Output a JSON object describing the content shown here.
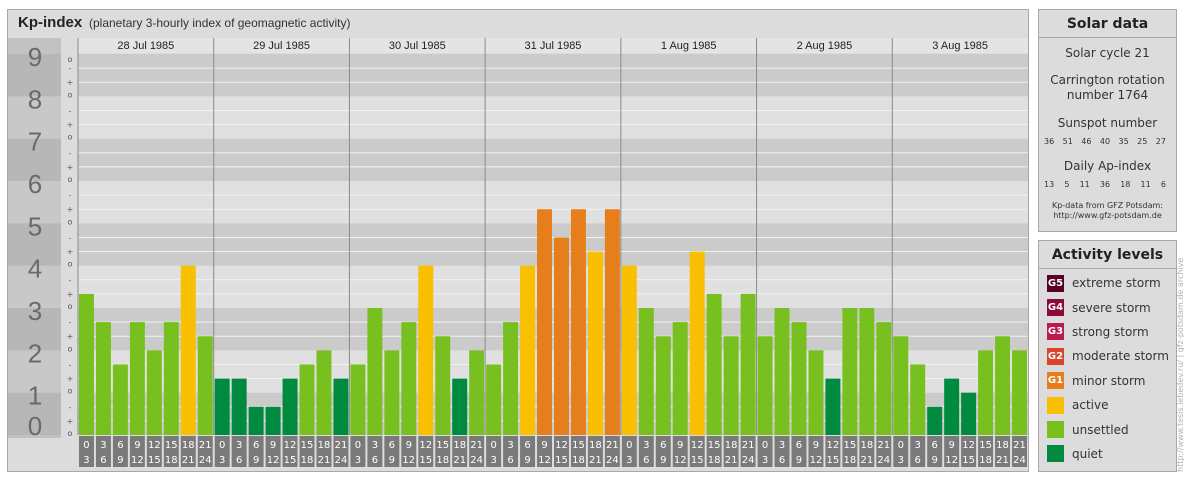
{
  "header": {
    "title": "Kp-index",
    "subtitle": "(planetary 3-hourly index of geomagnetic activity)"
  },
  "chart_data": {
    "type": "bar",
    "title": "Kp-index",
    "subtitle": "(planetary 3-hourly index of geomagnetic activity)",
    "ylim": [
      0,
      9
    ],
    "y_ticks": [
      "0",
      "1",
      "2",
      "3",
      "4",
      "5",
      "6",
      "7",
      "8",
      "9"
    ],
    "minor_ticks": [
      "o",
      "+",
      "-"
    ],
    "days": [
      "28 Jul 1985",
      "29 Jul 1985",
      "30 Jul 1985",
      "31 Jul 1985",
      "1 Aug 1985",
      "2 Aug 1985",
      "3 Aug 1985"
    ],
    "hour_labels": [
      [
        "0",
        "3"
      ],
      [
        "3",
        "6"
      ],
      [
        "6",
        "9"
      ],
      [
        "9",
        "12"
      ],
      [
        "12",
        "15"
      ],
      [
        "15",
        "18"
      ],
      [
        "18",
        "21"
      ],
      [
        "21",
        "24"
      ]
    ],
    "values": [
      [
        3.333,
        2.667,
        1.667,
        2.667,
        2.0,
        2.667,
        4.0,
        2.333
      ],
      [
        1.333,
        1.333,
        0.667,
        0.667,
        1.333,
        1.667,
        2.0,
        1.333
      ],
      [
        1.667,
        3.0,
        2.0,
        2.667,
        4.0,
        2.333,
        1.333,
        2.0
      ],
      [
        1.667,
        2.667,
        4.0,
        5.333,
        4.667,
        5.333,
        4.333,
        5.333
      ],
      [
        4.0,
        3.0,
        2.333,
        2.667,
        4.333,
        3.333,
        2.333,
        3.333
      ],
      [
        2.333,
        3.0,
        2.667,
        2.0,
        1.333,
        3.0,
        3.0,
        2.667
      ],
      [
        2.333,
        1.667,
        0.667,
        1.333,
        1.0,
        2.0,
        2.333,
        2.0
      ]
    ],
    "grid": true,
    "legend": "right"
  },
  "solar": {
    "title": "Solar data",
    "cycle": "Solar cycle 21",
    "carrington_l1": "Carrington rotation",
    "carrington_l2": "number 1764",
    "sunspot_title": "Sunspot number",
    "sunspot": [
      "36",
      "51",
      "46",
      "40",
      "35",
      "25",
      "27"
    ],
    "ap_title": "Daily Ap-index",
    "ap": [
      "13",
      "5",
      "11",
      "36",
      "18",
      "11",
      "6"
    ],
    "credit_l1": "Kp-data from GFZ Potsdam:",
    "credit_l2": "http://www.gfz-potsdam.de"
  },
  "levels": {
    "title": "Activity levels",
    "items": [
      {
        "code": "G5",
        "label": "extreme storm",
        "color": "#5a0026"
      },
      {
        "code": "G4",
        "label": "severe storm",
        "color": "#8a0a3c"
      },
      {
        "code": "G3",
        "label": "strong storm",
        "color": "#b81a52"
      },
      {
        "code": "G2",
        "label": "moderate storm",
        "color": "#d9442b"
      },
      {
        "code": "G1",
        "label": "minor storm",
        "color": "#e67e1c"
      },
      {
        "code": "",
        "label": "active",
        "color": "#f8c000"
      },
      {
        "code": "",
        "label": "unsettled",
        "color": "#78c020"
      },
      {
        "code": "",
        "label": "quiet",
        "color": "#008a40"
      }
    ]
  },
  "colors": {
    "quiet": "#008a40",
    "unsettled": "#78c020",
    "active": "#f8c000",
    "minor": "#e67e1c",
    "moderate": "#d9442b"
  },
  "watermark": "http://www.tesis.lebedev.ru/ | gfz-potsdam.de archive"
}
